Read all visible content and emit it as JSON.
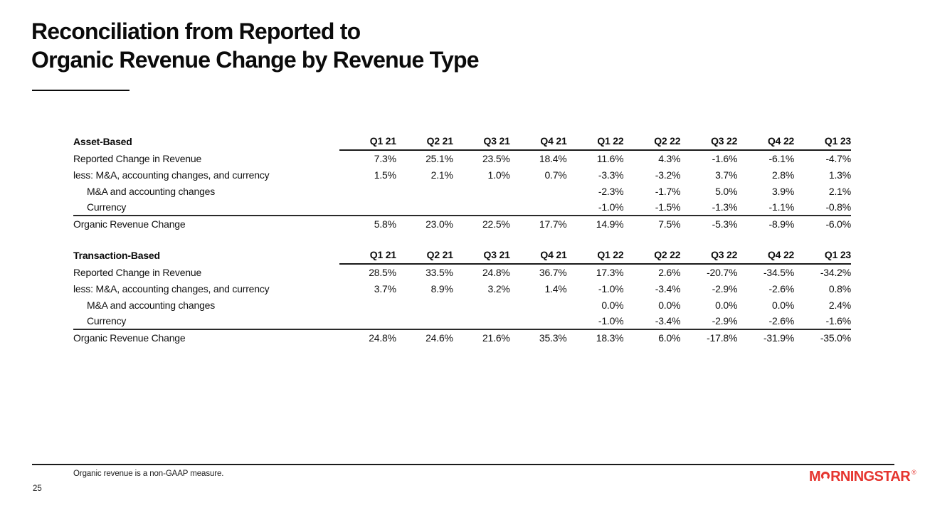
{
  "title": {
    "line1": "Reconciliation from Reported to",
    "line2": "Organic Revenue Change by Revenue Type"
  },
  "quarters": [
    "Q1 21",
    "Q2 21",
    "Q3 21",
    "Q4 21",
    "Q1 22",
    "Q2 22",
    "Q3 22",
    "Q4 22",
    "Q1 23"
  ],
  "tables": [
    {
      "section": "Asset-Based",
      "rows": [
        {
          "label": "Reported Change in Revenue",
          "indent": false,
          "values": [
            "7.3%",
            "25.1%",
            "23.5%",
            "18.4%",
            "11.6%",
            "4.3%",
            "-1.6%",
            "-6.1%",
            "-4.7%"
          ]
        },
        {
          "label": "less: M&A, accounting changes, and currency",
          "indent": false,
          "values": [
            "1.5%",
            "2.1%",
            "1.0%",
            "0.7%",
            "-3.3%",
            "-3.2%",
            "3.7%",
            "2.8%",
            "1.3%"
          ]
        },
        {
          "label": "M&A and accounting changes",
          "indent": true,
          "values": [
            "",
            "",
            "",
            "",
            "-2.3%",
            "-1.7%",
            "5.0%",
            "3.9%",
            "2.1%"
          ]
        },
        {
          "label": "Currency",
          "indent": true,
          "rule_below": true,
          "values": [
            "",
            "",
            "",
            "",
            "-1.0%",
            "-1.5%",
            "-1.3%",
            "-1.1%",
            "-0.8%"
          ]
        },
        {
          "label": "Organic Revenue Change",
          "indent": false,
          "values": [
            "5.8%",
            "23.0%",
            "22.5%",
            "17.7%",
            "14.9%",
            "7.5%",
            "-5.3%",
            "-8.9%",
            "-6.0%"
          ]
        }
      ]
    },
    {
      "section": "Transaction-Based",
      "rows": [
        {
          "label": "Reported Change in Revenue",
          "indent": false,
          "values": [
            "28.5%",
            "33.5%",
            "24.8%",
            "36.7%",
            "17.3%",
            "2.6%",
            "-20.7%",
            "-34.5%",
            "-34.2%"
          ]
        },
        {
          "label": "less: M&A, accounting changes, and currency",
          "indent": false,
          "values": [
            "3.7%",
            "8.9%",
            "3.2%",
            "1.4%",
            "-1.0%",
            "-3.4%",
            "-2.9%",
            "-2.6%",
            "0.8%"
          ]
        },
        {
          "label": "M&A and accounting changes",
          "indent": true,
          "values": [
            "",
            "",
            "",
            "",
            "0.0%",
            "0.0%",
            "0.0%",
            "0.0%",
            "2.4%"
          ]
        },
        {
          "label": "Currency",
          "indent": true,
          "rule_below": true,
          "values": [
            "",
            "",
            "",
            "",
            "-1.0%",
            "-3.4%",
            "-2.9%",
            "-2.6%",
            "-1.6%"
          ]
        },
        {
          "label": "Organic Revenue Change",
          "indent": false,
          "values": [
            "24.8%",
            "24.6%",
            "21.6%",
            "35.3%",
            "18.3%",
            "6.0%",
            "-17.8%",
            "-31.9%",
            "-35.0%"
          ]
        }
      ]
    }
  ],
  "footer": {
    "note": "Organic revenue is a non-GAAP measure.",
    "page_number": "25"
  },
  "logo": {
    "pre": "M",
    "post": "RNINGSTAR",
    "registered": "®",
    "color": "#e5352f"
  },
  "colors": {
    "text": "#000000",
    "rule": "#1a1a1a",
    "background": "#ffffff"
  }
}
